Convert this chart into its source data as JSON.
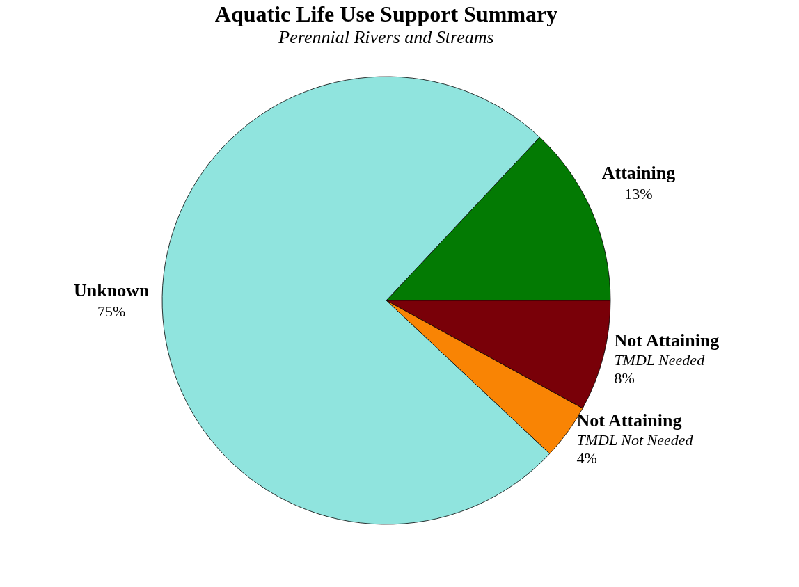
{
  "chart_data": {
    "type": "pie",
    "title": "Aquatic Life Use Support Summary",
    "subtitle": "Perennial Rivers and Streams",
    "categories": [
      "Attaining",
      "Not Attaining\nTMDL Needed",
      "Not Attaining\nTMDL Not Needed",
      "Unknown"
    ],
    "values": [
      13,
      8,
      4,
      75
    ],
    "colors": [
      "#037a03",
      "#790008",
      "#f98404",
      "#90e4de"
    ],
    "value_labels": [
      "13%",
      "8%",
      "4%",
      "75%"
    ],
    "data_labels": true,
    "legend": false
  }
}
